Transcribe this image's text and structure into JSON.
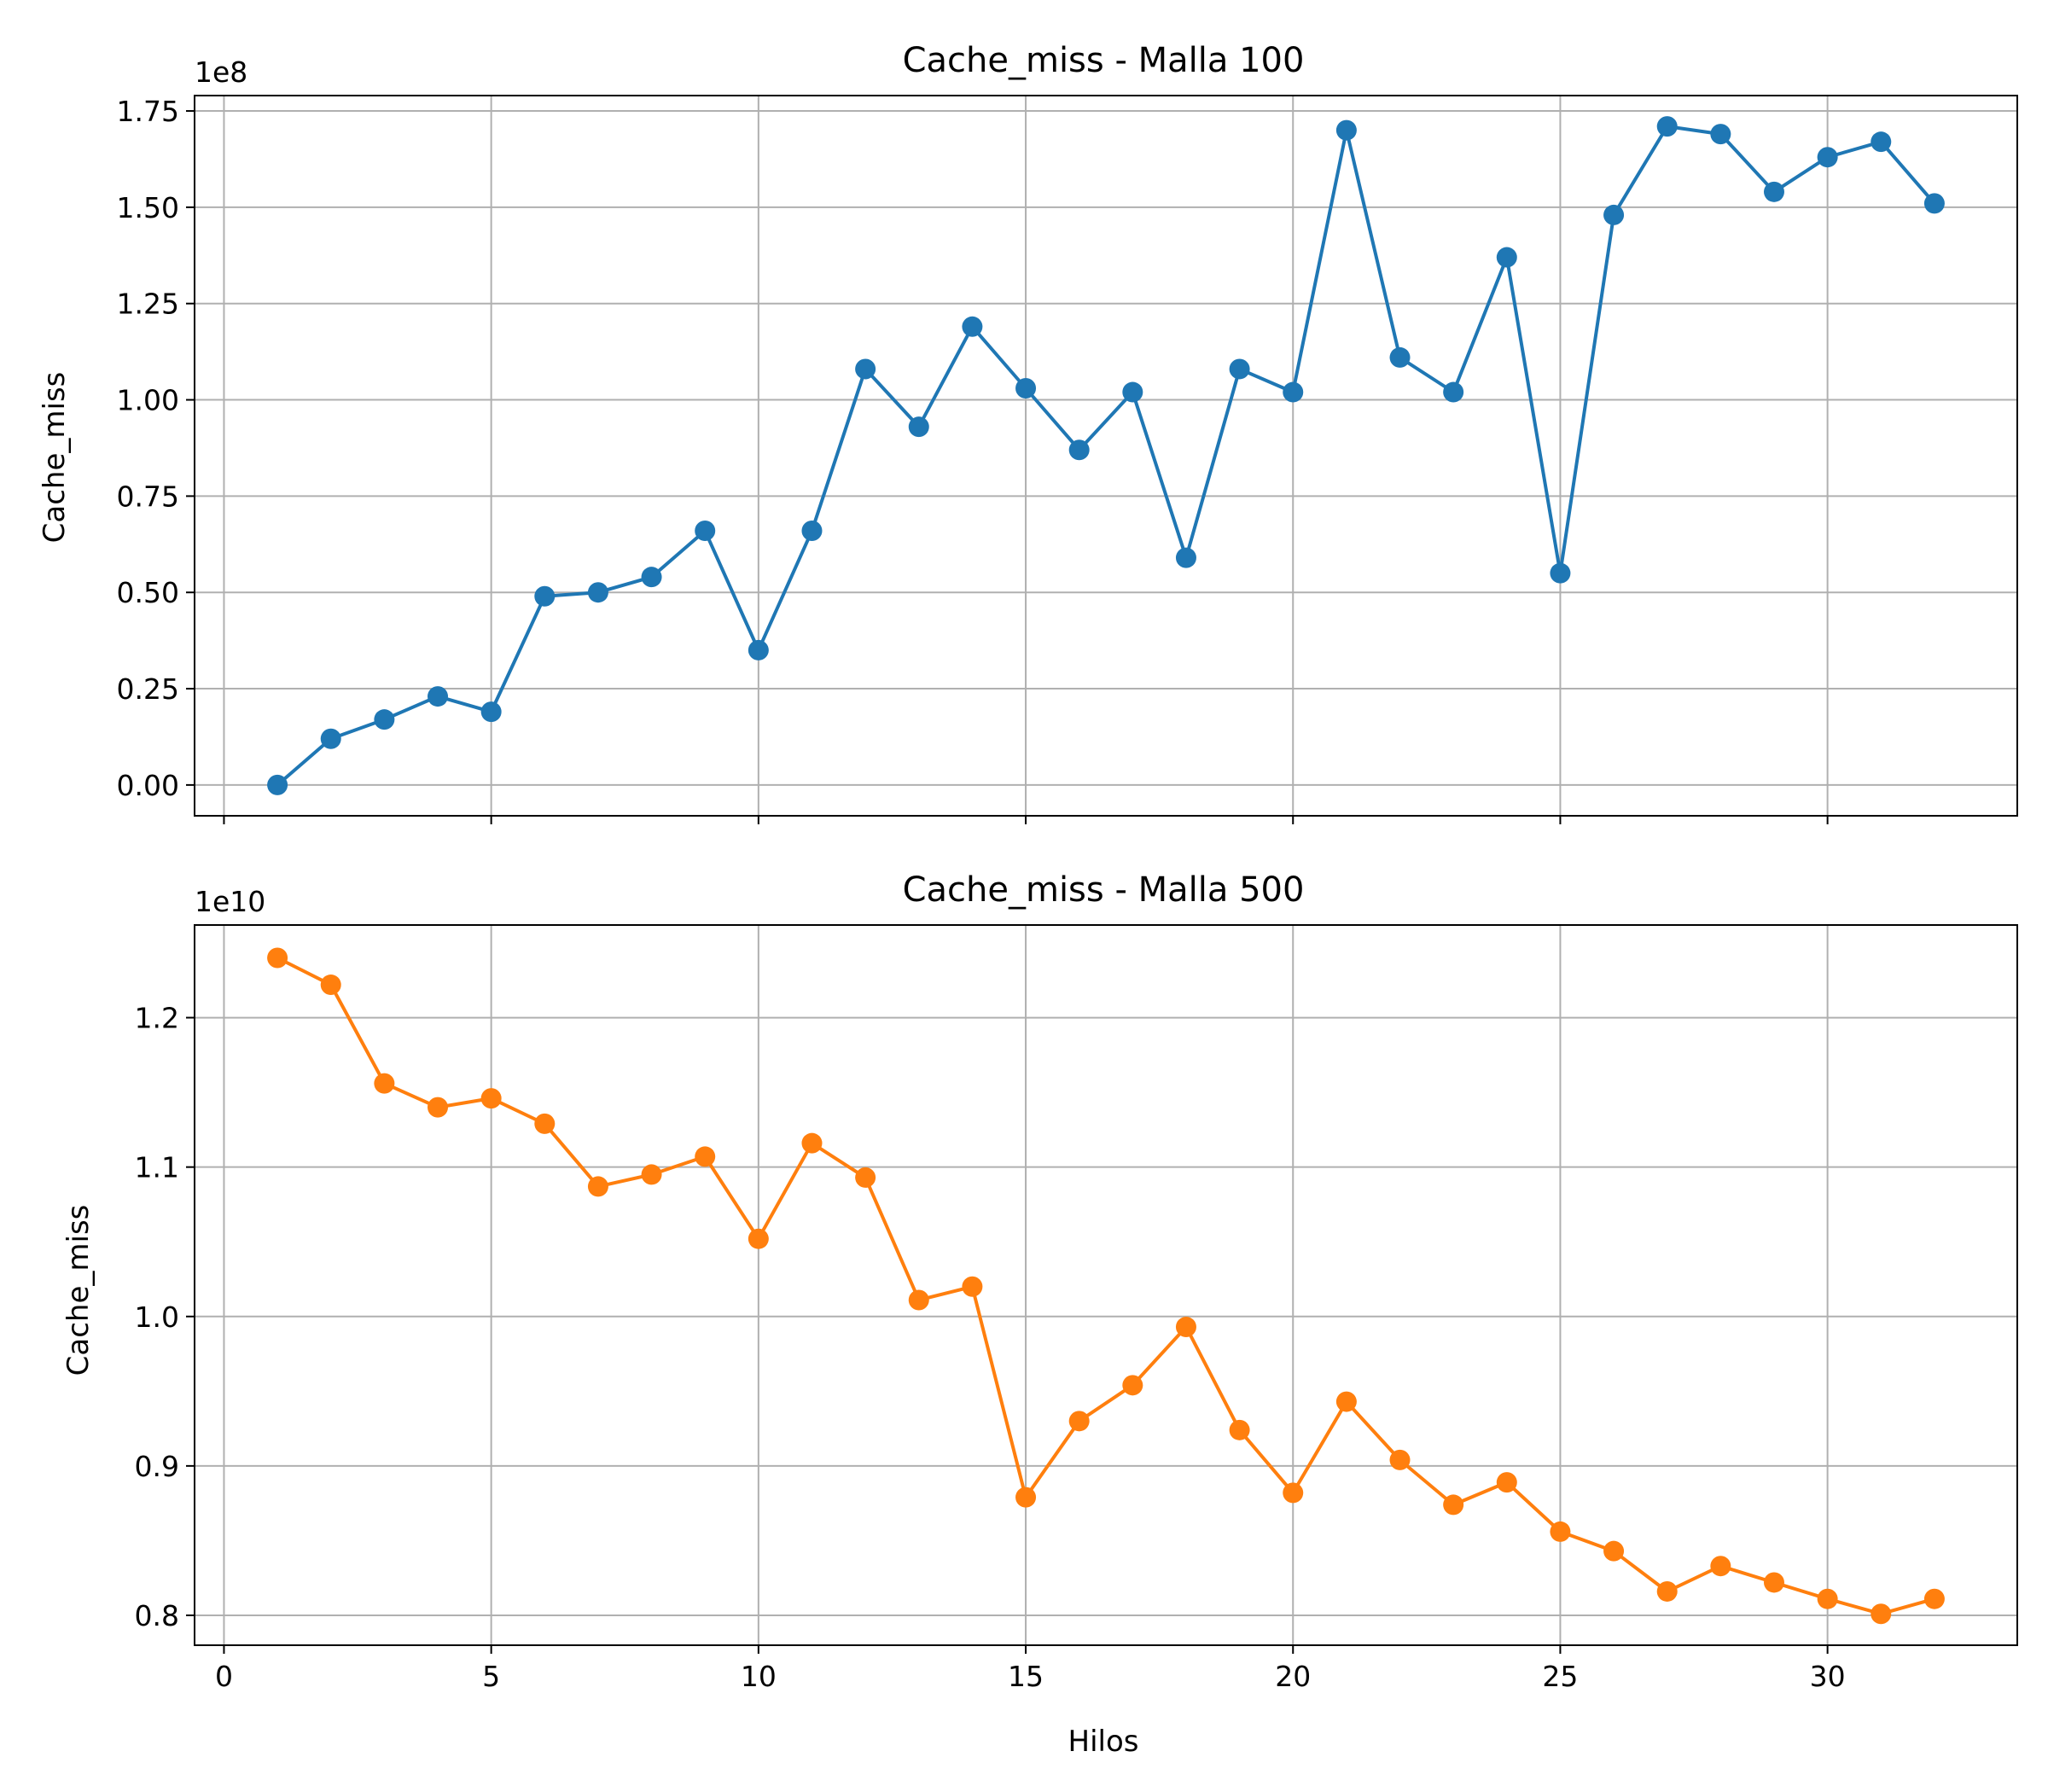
{
  "chart_data": [
    {
      "type": "line",
      "title": "Cache_miss - Malla 100",
      "ylabel": "Cache_miss",
      "xlabel": "",
      "y_offset_label": "1e8",
      "y_scale": 100000000,
      "grid": true,
      "xlim": [
        -0.55,
        33.55
      ],
      "ylim": [
        -0.08,
        1.79
      ],
      "x_ticks": [
        0,
        5,
        10,
        15,
        20,
        25,
        30
      ],
      "x_tick_labels_visible": false,
      "y_ticks": [
        0.0,
        0.25,
        0.5,
        0.75,
        1.0,
        1.25,
        1.5,
        1.75
      ],
      "y_tick_labels": [
        "0.00",
        "0.25",
        "0.50",
        "0.75",
        "1.00",
        "1.25",
        "1.50",
        "1.75"
      ],
      "color": "#1f77b4",
      "x": [
        1,
        2,
        3,
        4,
        5,
        6,
        7,
        8,
        9,
        10,
        11,
        12,
        13,
        14,
        15,
        16,
        17,
        18,
        19,
        20,
        21,
        22,
        23,
        24,
        25,
        26,
        27,
        28,
        29,
        30,
        31,
        32
      ],
      "values": [
        0.0,
        0.12,
        0.17,
        0.23,
        0.19,
        0.49,
        0.5,
        0.54,
        0.66,
        0.35,
        0.66,
        1.08,
        0.93,
        1.19,
        1.03,
        0.87,
        1.02,
        0.59,
        1.08,
        1.02,
        1.7,
        1.11,
        1.02,
        1.37,
        0.55,
        1.48,
        1.71,
        1.69,
        1.54,
        1.63,
        1.67,
        1.51
      ]
    },
    {
      "type": "line",
      "title": "Cache_miss - Malla 500",
      "ylabel": "Cache_miss",
      "xlabel": "Hilos",
      "y_offset_label": "1e10",
      "y_scale": 10000000000,
      "grid": true,
      "xlim": [
        -0.55,
        33.55
      ],
      "ylim": [
        0.78,
        1.262
      ],
      "x_ticks": [
        0,
        5,
        10,
        15,
        20,
        25,
        30
      ],
      "x_tick_labels": [
        "0",
        "5",
        "10",
        "15",
        "20",
        "25",
        "30"
      ],
      "x_tick_labels_visible": true,
      "y_ticks": [
        0.8,
        0.9,
        1.0,
        1.1,
        1.2
      ],
      "y_tick_labels": [
        "0.8",
        "0.9",
        "1.0",
        "1.1",
        "1.2"
      ],
      "color": "#ff7f0e",
      "x": [
        1,
        2,
        3,
        4,
        5,
        6,
        7,
        8,
        9,
        10,
        11,
        12,
        13,
        14,
        15,
        16,
        17,
        18,
        19,
        20,
        21,
        22,
        23,
        24,
        25,
        26,
        27,
        28,
        29,
        30,
        31,
        32
      ],
      "values": [
        1.24,
        1.222,
        1.156,
        1.14,
        1.146,
        1.129,
        1.087,
        1.095,
        1.107,
        1.052,
        1.116,
        1.093,
        1.011,
        1.02,
        0.879,
        0.93,
        0.954,
        0.993,
        0.924,
        0.882,
        0.943,
        0.904,
        0.874,
        0.889,
        0.856,
        0.843,
        0.816,
        0.833,
        0.822,
        0.811,
        0.801,
        0.811
      ]
    }
  ]
}
